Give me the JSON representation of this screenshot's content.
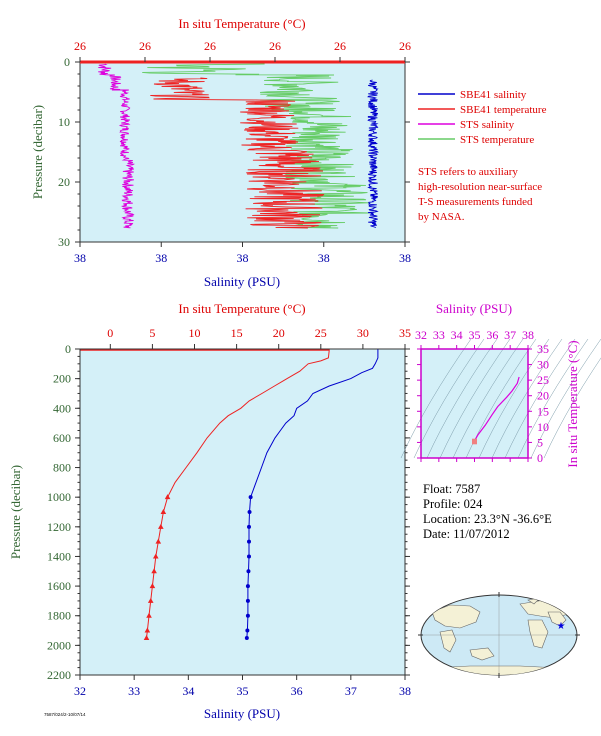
{
  "colors": {
    "plot_bg": "#d4f0f8",
    "salinity": "#0000cc",
    "temperature": "#ee2222",
    "sts_salinity": "#dd00dd",
    "sts_temperature": "#66cc66",
    "axis_red": "#dd0000",
    "axis_blue": "#0000aa",
    "axis_green": "#336633",
    "axis_magenta": "#cc00cc"
  },
  "top_chart": {
    "x_top_title": "In situ Temperature (°C)",
    "x_top_ticks": [
      "26",
      "26",
      "26",
      "26",
      "26",
      "26"
    ],
    "x_bottom_title": "Salinity (PSU)",
    "x_bottom_ticks": [
      "38",
      "38",
      "38",
      "38",
      "38"
    ],
    "y_title": "Pressure (decibar)",
    "y_ticks": [
      "0",
      "10",
      "20",
      "30"
    ],
    "legend": [
      {
        "label": "SBE41 salinity",
        "color": "#0000cc"
      },
      {
        "label": "SBE41 temperature",
        "color": "#ee2222"
      },
      {
        "label": "STS salinity",
        "color": "#dd00dd"
      },
      {
        "label": "STS temperature",
        "color": "#66cc66"
      }
    ],
    "note_lines": [
      "STS refers to auxiliary",
      "high-resolution near-surface",
      "T-S measurements funded",
      "by NASA."
    ]
  },
  "main_chart": {
    "x_top_title": "In situ Temperature (°C)",
    "x_top_ticks": [
      "0",
      "5",
      "10",
      "15",
      "20",
      "25",
      "30",
      "35"
    ],
    "x_bottom_title": "Salinity (PSU)",
    "x_bottom_ticks": [
      "32",
      "33",
      "34",
      "35",
      "36",
      "37",
      "38"
    ],
    "y_title": "Pressure (decibar)",
    "y_ticks": [
      "0",
      "200",
      "400",
      "600",
      "800",
      "1000",
      "1200",
      "1400",
      "1600",
      "1800",
      "2000",
      "2200"
    ]
  },
  "ts_chart": {
    "x_title": "Salinity (PSU)",
    "x_ticks": [
      "32",
      "33",
      "34",
      "35",
      "36",
      "37",
      "38"
    ],
    "y_title": "In situ Temperature (°C)",
    "y_ticks": [
      "0",
      "5",
      "10",
      "15",
      "20",
      "25",
      "30",
      "35"
    ]
  },
  "info": {
    "float": "Float:  7587",
    "profile": "Profile:  024",
    "location": "Location:  23.3°N  -36.6°E",
    "date": "Date:  11/07/2012"
  },
  "chart_data": [
    {
      "type": "line",
      "title": "",
      "xlabel": "Salinity (PSU)",
      "ylabel": "Pressure (decibar)",
      "xlim": [
        32,
        38
      ],
      "ylim": [
        2200,
        0
      ],
      "series": [
        {
          "name": "Salinity",
          "pressure": [
            0,
            5,
            30,
            60,
            100,
            130,
            160,
            200,
            250,
            300,
            350,
            400,
            450,
            500,
            550,
            600,
            700,
            800,
            900,
            1000,
            1100,
            1200,
            1300,
            1400,
            1500,
            1600,
            1700,
            1800,
            1900,
            1950
          ],
          "values": [
            37.5,
            37.5,
            37.5,
            37.5,
            37.45,
            37.4,
            37.2,
            37.0,
            36.6,
            36.3,
            36.2,
            36.0,
            35.95,
            35.8,
            35.7,
            35.6,
            35.45,
            35.35,
            35.25,
            35.15,
            35.13,
            35.12,
            35.12,
            35.12,
            35.11,
            35.1,
            35.1,
            35.1,
            35.09,
            35.08
          ]
        }
      ]
    },
    {
      "type": "line",
      "xlabel": "In situ Temperature (°C)",
      "ylabel": "Pressure (decibar)",
      "xlim": [
        0,
        35
      ],
      "ylim": [
        2200,
        0
      ],
      "series": [
        {
          "name": "Temperature",
          "pressure": [
            0,
            10,
            60,
            80,
            100,
            150,
            200,
            250,
            300,
            350,
            400,
            450,
            500,
            600,
            700,
            800,
            900,
            1000,
            1100,
            1200,
            1300,
            1400,
            1500,
            1600,
            1700,
            1800,
            1900,
            1950
          ],
          "values": [
            26.0,
            26.0,
            25.9,
            25.0,
            23.5,
            22.5,
            21.0,
            19.5,
            18.0,
            16.5,
            15.5,
            14.0,
            13.0,
            11.5,
            10.3,
            9.0,
            7.7,
            6.8,
            6.3,
            6.0,
            5.7,
            5.4,
            5.2,
            5.0,
            4.8,
            4.6,
            4.4,
            4.3
          ]
        }
      ]
    },
    {
      "type": "scatter",
      "xlabel": "Salinity (PSU)",
      "ylabel": "In situ Temperature (°C)",
      "xlim": [
        32,
        38
      ],
      "ylim": [
        0,
        35
      ],
      "series": [
        {
          "name": "T-S",
          "x": [
            35.0,
            35.05,
            35.2,
            35.6,
            36.0,
            36.3,
            36.8,
            37.1,
            37.4,
            37.5
          ],
          "y": [
            4.5,
            6.0,
            7.5,
            10.5,
            14.0,
            16.5,
            19.5,
            21.5,
            24.0,
            26.0
          ]
        }
      ]
    }
  ]
}
